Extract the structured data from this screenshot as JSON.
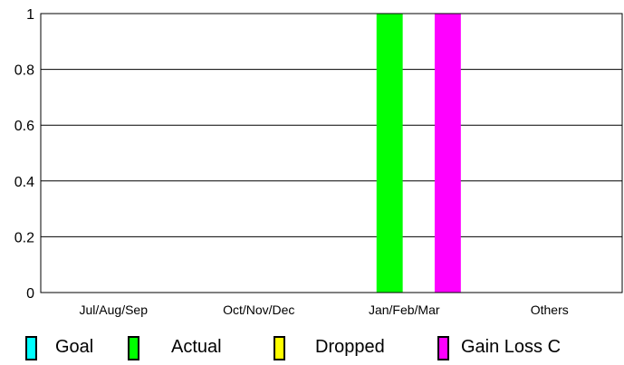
{
  "chart_data": {
    "type": "bar",
    "categories": [
      "Jul/Aug/Sep",
      "Oct/Nov/Dec",
      "Jan/Feb/Mar",
      "Others"
    ],
    "series": [
      {
        "name": "Goal",
        "color": "#00ffff",
        "values": [
          0,
          0,
          0,
          0
        ]
      },
      {
        "name": "Actual",
        "color": "#00ff00",
        "values": [
          0,
          0,
          1,
          0
        ]
      },
      {
        "name": "Dropped",
        "color": "#ffff00",
        "values": [
          0,
          0,
          0,
          0
        ]
      },
      {
        "name": "Gain Loss C",
        "color": "#ff00ff",
        "values": [
          0,
          0,
          1,
          0
        ]
      }
    ],
    "ylim": [
      0,
      1
    ],
    "yticks": [
      "0",
      "0.2",
      "0.4",
      "0.6",
      "0.8",
      "1"
    ],
    "grid": true,
    "legend_position": "bottom"
  }
}
